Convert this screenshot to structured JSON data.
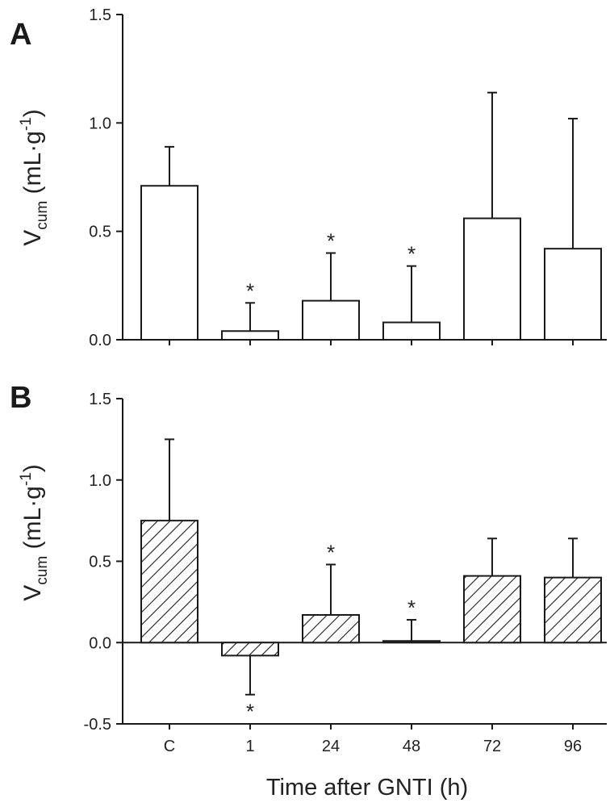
{
  "chart_data": [
    {
      "panel": "A",
      "type": "bar",
      "categories": [
        "C",
        "1",
        "24",
        "48",
        "72",
        "96"
      ],
      "values": [
        0.71,
        0.04,
        0.18,
        0.08,
        0.56,
        0.42
      ],
      "errors": [
        0.18,
        0.13,
        0.22,
        0.26,
        0.58,
        0.6
      ],
      "significant": [
        false,
        true,
        true,
        true,
        false,
        false
      ],
      "fill": "plain",
      "ylabel_main": "V",
      "ylabel_sub": "cum",
      "ylabel_unit_open": " (mL·g",
      "ylabel_unit_exp": "-1",
      "ylabel_unit_close": ")",
      "ylim": [
        0,
        1.5
      ],
      "yticks": [
        "0.0",
        "0.5",
        "1.0",
        "1.5"
      ],
      "show_xticklabels": false
    },
    {
      "panel": "B",
      "type": "bar",
      "categories": [
        "C",
        "1",
        "24",
        "48",
        "72",
        "96"
      ],
      "values": [
        0.75,
        -0.08,
        0.17,
        0.01,
        0.41,
        0.4
      ],
      "errors": [
        0.5,
        0.24,
        0.31,
        0.13,
        0.23,
        0.24
      ],
      "significant": [
        false,
        true,
        true,
        true,
        false,
        false
      ],
      "fill": "hatched",
      "ylabel_main": "V",
      "ylabel_sub": "cum",
      "ylabel_unit_open": " (mL·g",
      "ylabel_unit_exp": "-1",
      "ylabel_unit_close": ")",
      "ylim": [
        -0.5,
        1.5
      ],
      "yticks": [
        "-0.5",
        "0.0",
        "0.5",
        "1.0",
        "1.5"
      ],
      "xlabel": "Time after GNTI (h)",
      "show_xticklabels": true
    }
  ],
  "colors": {
    "axis": "#1a1a1a",
    "bar_edge": "#1a1a1a",
    "bar_fill": "#ffffff"
  }
}
